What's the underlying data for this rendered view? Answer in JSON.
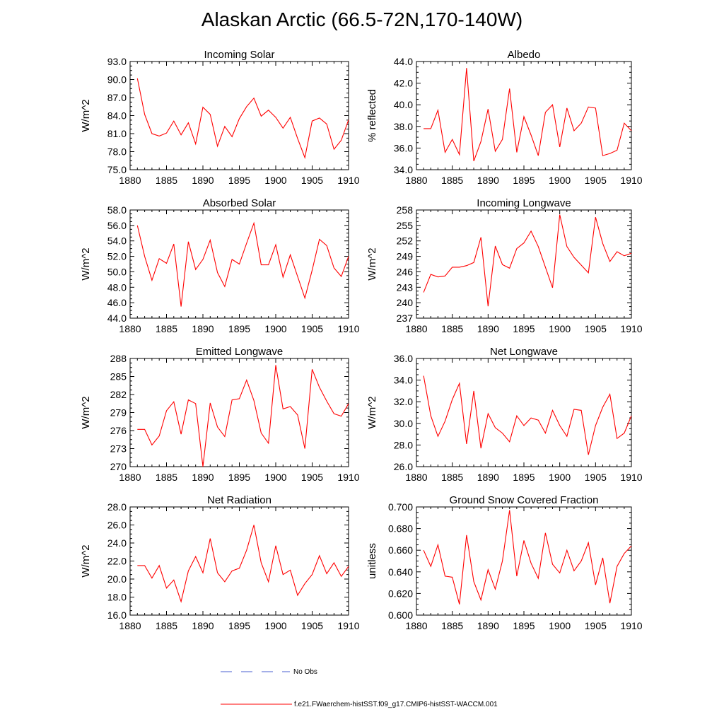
{
  "title": "Alaskan Arctic (66.5-72N,170-140W)",
  "legend": {
    "obs_label": "No Obs",
    "obs_color": "#4a5fd0",
    "model_label": "f.e21.FWaerchem-histSST.f09_g17.CMIP6-histSST-WACCM.001",
    "model_color": "#ff0000"
  },
  "chart_data": [
    {
      "type": "line",
      "title": "Incoming Solar",
      "ylabel": "W/m^2",
      "xlim": [
        1880,
        1910
      ],
      "x_ticks": [
        "1880",
        "1885",
        "1890",
        "1895",
        "1900",
        "1905",
        "1910"
      ],
      "ylim": [
        75,
        93
      ],
      "y_ticks": [
        "75.0",
        "78.0",
        "81.0",
        "84.0",
        "87.0",
        "90.0",
        "93.0"
      ],
      "x": [
        1881,
        1882,
        1883,
        1884,
        1885,
        1886,
        1887,
        1888,
        1889,
        1890,
        1891,
        1892,
        1893,
        1894,
        1895,
        1896,
        1897,
        1898,
        1899,
        1900,
        1901,
        1902,
        1903,
        1904,
        1905,
        1906,
        1907,
        1908,
        1909,
        1910
      ],
      "series": [
        {
          "values": [
            90.2,
            84.2,
            81.0,
            80.6,
            81.1,
            83.1,
            80.8,
            82.8,
            79.3,
            85.4,
            84.2,
            78.9,
            82.2,
            80.5,
            83.5,
            85.5,
            86.9,
            83.9,
            84.9,
            83.7,
            81.9,
            83.7,
            80.2,
            77.0,
            83.1,
            83.6,
            82.6,
            78.4,
            79.9,
            83.3
          ]
        }
      ]
    },
    {
      "type": "line",
      "title": "Albedo",
      "ylabel": "% reflected",
      "xlim": [
        1880,
        1910
      ],
      "x_ticks": [
        "1880",
        "1885",
        "1890",
        "1895",
        "1900",
        "1905",
        "1910"
      ],
      "ylim": [
        34,
        44
      ],
      "y_ticks": [
        "34.0",
        "36.0",
        "38.0",
        "40.0",
        "42.0",
        "44.0"
      ],
      "x": [
        1881,
        1882,
        1883,
        1884,
        1885,
        1886,
        1887,
        1888,
        1889,
        1890,
        1891,
        1892,
        1893,
        1894,
        1895,
        1896,
        1897,
        1898,
        1899,
        1900,
        1901,
        1902,
        1903,
        1904,
        1905,
        1906,
        1907,
        1908,
        1909,
        1910
      ],
      "series": [
        {
          "values": [
            37.8,
            37.8,
            39.5,
            35.6,
            36.8,
            35.4,
            43.4,
            34.8,
            36.6,
            39.6,
            35.7,
            36.8,
            41.5,
            35.6,
            38.9,
            37.2,
            35.3,
            39.3,
            40.0,
            36.1,
            39.7,
            37.6,
            38.3,
            39.8,
            39.7,
            35.3,
            35.5,
            35.8,
            38.3,
            37.6
          ]
        }
      ]
    },
    {
      "type": "line",
      "title": "Absorbed Solar",
      "ylabel": "W/m^2",
      "xlim": [
        1880,
        1910
      ],
      "x_ticks": [
        "1880",
        "1885",
        "1890",
        "1895",
        "1900",
        "1905",
        "1910"
      ],
      "ylim": [
        44,
        58
      ],
      "y_ticks": [
        "44.0",
        "46.0",
        "48.0",
        "50.0",
        "52.0",
        "54.0",
        "56.0",
        "58.0"
      ],
      "x": [
        1881,
        1882,
        1883,
        1884,
        1885,
        1886,
        1887,
        1888,
        1889,
        1890,
        1891,
        1892,
        1893,
        1894,
        1895,
        1896,
        1897,
        1898,
        1899,
        1900,
        1901,
        1902,
        1903,
        1904,
        1905,
        1906,
        1907,
        1908,
        1909,
        1910
      ],
      "series": [
        {
          "values": [
            56.0,
            52.0,
            48.9,
            51.7,
            51.1,
            53.6,
            45.5,
            53.9,
            50.3,
            51.6,
            54.1,
            49.9,
            48.1,
            51.6,
            51.0,
            53.7,
            56.3,
            50.9,
            50.9,
            53.5,
            49.3,
            52.2,
            49.4,
            46.6,
            50.2,
            54.2,
            53.4,
            50.5,
            49.4,
            52.0
          ]
        }
      ]
    },
    {
      "type": "line",
      "title": "Incoming Longwave",
      "ylabel": "W/m^2",
      "xlim": [
        1880,
        1910
      ],
      "x_ticks": [
        "1880",
        "1885",
        "1890",
        "1895",
        "1900",
        "1905",
        "1910"
      ],
      "ylim": [
        237,
        258
      ],
      "y_ticks": [
        "237",
        "240",
        "243",
        "246",
        "249",
        "252",
        "255",
        "258"
      ],
      "x": [
        1881,
        1882,
        1883,
        1884,
        1885,
        1886,
        1887,
        1888,
        1889,
        1890,
        1891,
        1892,
        1893,
        1894,
        1895,
        1896,
        1897,
        1898,
        1899,
        1900,
        1901,
        1902,
        1903,
        1904,
        1905,
        1906,
        1907,
        1908,
        1909,
        1910
      ],
      "series": [
        {
          "values": [
            242.0,
            245.5,
            245.0,
            245.2,
            246.9,
            246.9,
            247.2,
            247.8,
            252.7,
            239.3,
            251.0,
            247.4,
            246.7,
            250.5,
            251.6,
            253.9,
            250.9,
            246.9,
            242.9,
            257.1,
            250.9,
            248.8,
            247.3,
            245.8,
            256.6,
            251.5,
            248.0,
            249.9,
            249.1,
            249.6
          ]
        }
      ]
    },
    {
      "type": "line",
      "title": "Emitted Longwave",
      "ylabel": "W/m^2",
      "xlim": [
        1880,
        1910
      ],
      "x_ticks": [
        "1880",
        "1885",
        "1890",
        "1895",
        "1900",
        "1905",
        "1910"
      ],
      "ylim": [
        270,
        288
      ],
      "y_ticks": [
        "270",
        "273",
        "276",
        "279",
        "282",
        "285",
        "288"
      ],
      "x": [
        1881,
        1882,
        1883,
        1884,
        1885,
        1886,
        1887,
        1888,
        1889,
        1890,
        1891,
        1892,
        1893,
        1894,
        1895,
        1896,
        1897,
        1898,
        1899,
        1900,
        1901,
        1902,
        1903,
        1904,
        1905,
        1906,
        1907,
        1908,
        1909,
        1910
      ],
      "series": [
        {
          "values": [
            276.2,
            276.2,
            273.6,
            275.1,
            279.3,
            280.8,
            275.4,
            281.1,
            280.5,
            270.0,
            280.6,
            276.6,
            275.0,
            281.1,
            281.3,
            284.4,
            281.0,
            275.6,
            273.9,
            286.9,
            279.6,
            280.0,
            278.6,
            273.0,
            286.2,
            283.2,
            280.9,
            278.8,
            278.4,
            280.5
          ]
        }
      ]
    },
    {
      "type": "line",
      "title": "Net Longwave",
      "ylabel": "W/m^2",
      "xlim": [
        1880,
        1910
      ],
      "x_ticks": [
        "1880",
        "1885",
        "1890",
        "1895",
        "1900",
        "1905",
        "1910"
      ],
      "ylim": [
        26,
        36
      ],
      "y_ticks": [
        "26.0",
        "28.0",
        "30.0",
        "32.0",
        "34.0",
        "36.0"
      ],
      "x": [
        1881,
        1882,
        1883,
        1884,
        1885,
        1886,
        1887,
        1888,
        1889,
        1890,
        1891,
        1892,
        1893,
        1894,
        1895,
        1896,
        1897,
        1898,
        1899,
        1900,
        1901,
        1902,
        1903,
        1904,
        1905,
        1906,
        1907,
        1908,
        1909,
        1910
      ],
      "series": [
        {
          "values": [
            34.4,
            30.7,
            28.8,
            30.2,
            32.2,
            33.7,
            28.1,
            33.0,
            27.7,
            30.9,
            29.6,
            29.1,
            28.3,
            30.7,
            29.8,
            30.5,
            30.3,
            29.1,
            31.2,
            29.8,
            28.8,
            31.3,
            31.2,
            27.1,
            29.8,
            31.5,
            32.7,
            28.6,
            29.1,
            30.7
          ]
        }
      ]
    },
    {
      "type": "line",
      "title": "Net Radiation",
      "ylabel": "W/m^2",
      "xlim": [
        1880,
        1910
      ],
      "x_ticks": [
        "1880",
        "1885",
        "1890",
        "1895",
        "1900",
        "1905",
        "1910"
      ],
      "ylim": [
        16,
        28
      ],
      "y_ticks": [
        "16.0",
        "18.0",
        "20.0",
        "22.0",
        "24.0",
        "26.0",
        "28.0"
      ],
      "x": [
        1881,
        1882,
        1883,
        1884,
        1885,
        1886,
        1887,
        1888,
        1889,
        1890,
        1891,
        1892,
        1893,
        1894,
        1895,
        1896,
        1897,
        1898,
        1899,
        1900,
        1901,
        1902,
        1903,
        1904,
        1905,
        1906,
        1907,
        1908,
        1909,
        1910
      ],
      "series": [
        {
          "values": [
            21.5,
            21.5,
            20.1,
            21.5,
            19.0,
            19.9,
            17.5,
            20.9,
            22.5,
            20.7,
            24.5,
            20.7,
            19.7,
            20.9,
            21.2,
            23.2,
            26.0,
            21.8,
            19.7,
            23.7,
            20.5,
            21.0,
            18.2,
            19.5,
            20.5,
            22.6,
            20.6,
            21.8,
            20.3,
            21.4
          ]
        }
      ]
    },
    {
      "type": "line",
      "title": "Ground Snow Covered Fraction",
      "ylabel": "unitless",
      "xlim": [
        1880,
        1910
      ],
      "x_ticks": [
        "1880",
        "1885",
        "1890",
        "1895",
        "1900",
        "1905",
        "1910"
      ],
      "ylim": [
        0.6,
        0.7
      ],
      "y_ticks": [
        "0.600",
        "0.620",
        "0.640",
        "0.660",
        "0.680",
        "0.700"
      ],
      "x": [
        1881,
        1882,
        1883,
        1884,
        1885,
        1886,
        1887,
        1888,
        1889,
        1890,
        1891,
        1892,
        1893,
        1894,
        1895,
        1896,
        1897,
        1898,
        1899,
        1900,
        1901,
        1902,
        1903,
        1904,
        1905,
        1906,
        1907,
        1908,
        1909,
        1910
      ],
      "series": [
        {
          "values": [
            0.66,
            0.645,
            0.665,
            0.636,
            0.635,
            0.61,
            0.674,
            0.631,
            0.614,
            0.642,
            0.624,
            0.65,
            0.697,
            0.636,
            0.669,
            0.648,
            0.634,
            0.676,
            0.647,
            0.639,
            0.66,
            0.641,
            0.65,
            0.667,
            0.628,
            0.653,
            0.611,
            0.645,
            0.657,
            0.664
          ]
        }
      ]
    }
  ]
}
